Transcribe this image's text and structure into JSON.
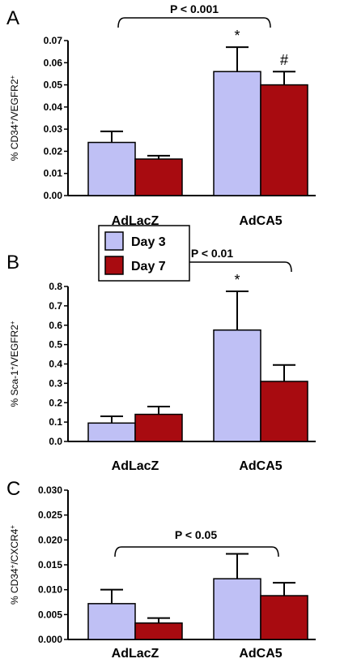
{
  "colors": {
    "day3": "#bfc0f5",
    "day7": "#a80b10",
    "stroke": "#000000"
  },
  "legend": {
    "items": [
      {
        "label": "Day 3",
        "color": "#bfc0f5"
      },
      {
        "label": "Day 7",
        "color": "#a80b10"
      }
    ]
  },
  "chart_data": [
    {
      "type": "bar",
      "panel": "A",
      "ylabel_main": "% CD34",
      "ylabel_mid": "/VEGFR2",
      "ylabel_sup": "+",
      "categories": [
        "AdLacZ",
        "AdCA5"
      ],
      "series": [
        {
          "name": "Day 3",
          "values": [
            0.024,
            0.056
          ],
          "errors": [
            0.005,
            0.011
          ]
        },
        {
          "name": "Day 7",
          "values": [
            0.0165,
            0.05
          ],
          "errors": [
            0.0015,
            0.006
          ]
        }
      ],
      "ylim": [
        0,
        0.07
      ],
      "yticks": [
        "0.00",
        "0.01",
        "0.02",
        "0.03",
        "0.04",
        "0.05",
        "0.06",
        "0.07"
      ],
      "significance": "P < 0.001",
      "annotations": [
        "*",
        "#"
      ]
    },
    {
      "type": "bar",
      "panel": "B",
      "ylabel_main": "% Sca-1",
      "ylabel_mid": "/VEGFR2",
      "ylabel_sup": "+",
      "categories": [
        "AdLacZ",
        "AdCA5"
      ],
      "series": [
        {
          "name": "Day 3",
          "values": [
            0.095,
            0.575
          ],
          "errors": [
            0.035,
            0.2
          ]
        },
        {
          "name": "Day 7",
          "values": [
            0.14,
            0.31
          ],
          "errors": [
            0.04,
            0.085
          ]
        }
      ],
      "ylim": [
        0,
        0.8
      ],
      "yticks": [
        "0.0",
        "0.1",
        "0.2",
        "0.3",
        "0.4",
        "0.5",
        "0.6",
        "0.7",
        "0.8"
      ],
      "significance": "P < 0.01",
      "annotations": [
        "*"
      ]
    },
    {
      "type": "bar",
      "panel": "C",
      "ylabel_main": "% CD34",
      "ylabel_mid": "/CXCR4",
      "ylabel_sup": "+",
      "categories": [
        "AdLacZ",
        "AdCA5"
      ],
      "series": [
        {
          "name": "Day 3",
          "values": [
            0.0072,
            0.0122
          ],
          "errors": [
            0.0028,
            0.005
          ]
        },
        {
          "name": "Day 7",
          "values": [
            0.0033,
            0.0088
          ],
          "errors": [
            0.001,
            0.0026
          ]
        }
      ],
      "ylim": [
        0,
        0.03
      ],
      "yticks": [
        "0.000",
        "0.005",
        "0.010",
        "0.015",
        "0.020",
        "0.025",
        "0.030"
      ],
      "significance": "P < 0.05",
      "annotations": []
    }
  ]
}
